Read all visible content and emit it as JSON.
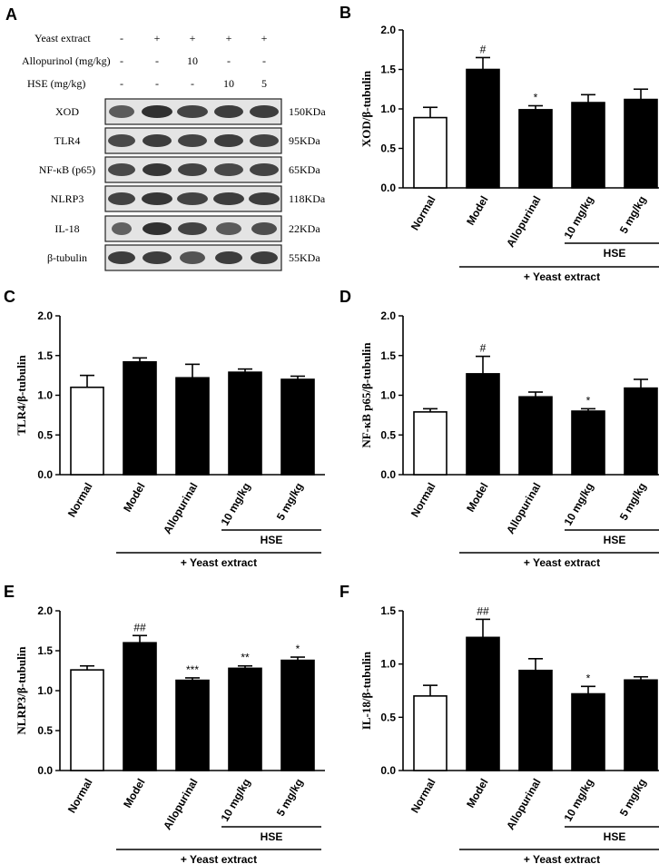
{
  "panel_a": {
    "letter": "A",
    "treatments": [
      {
        "label": "Yeast extract",
        "values": [
          "-",
          "+",
          "+",
          "+",
          "+"
        ]
      },
      {
        "label": "Allopurinol (mg/kg)",
        "values": [
          "-",
          "-",
          "10",
          "-",
          "-"
        ]
      },
      {
        "label": "HSE (mg/kg)",
        "values": [
          "-",
          "-",
          "-",
          "10",
          "5"
        ]
      }
    ],
    "blots": [
      {
        "protein": "XOD",
        "size": "150KDa"
      },
      {
        "protein": "TLR4",
        "size": "95KDa"
      },
      {
        "protein": "NF-κB (p65)",
        "size": "65KDa"
      },
      {
        "protein": "NLRP3",
        "size": "118KDa"
      },
      {
        "protein": "IL-18",
        "size": "22KDa"
      },
      {
        "protein": "β-tubulin",
        "size": "55KDa"
      }
    ]
  },
  "chart_data": [
    {
      "panel": "B",
      "type": "bar",
      "ylabel": "XOD/β-tubulin",
      "categories": [
        "Normal",
        "Model",
        "Allopurinal",
        "10 mg/kg",
        "5 mg/kg"
      ],
      "values": [
        0.89,
        1.5,
        0.99,
        1.08,
        1.12
      ],
      "errors": [
        0.13,
        0.15,
        0.05,
        0.1,
        0.13
      ],
      "sig": [
        "",
        "#",
        "*",
        "",
        ""
      ],
      "ylim": [
        0,
        2.0
      ],
      "yticks": [
        0.0,
        0.5,
        1.0,
        1.5,
        2.0
      ],
      "group_label": "HSE",
      "treatment_label": "+ Yeast extract"
    },
    {
      "panel": "C",
      "type": "bar",
      "ylabel": "TLR4/β-tubulin",
      "categories": [
        "Normal",
        "Model",
        "Allopurinal",
        "10 mg/kg",
        "5 mg/kg"
      ],
      "values": [
        1.1,
        1.42,
        1.22,
        1.29,
        1.2
      ],
      "errors": [
        0.15,
        0.05,
        0.17,
        0.04,
        0.04
      ],
      "sig": [
        "",
        "",
        "",
        "",
        ""
      ],
      "ylim": [
        0,
        2.0
      ],
      "yticks": [
        0.0,
        0.5,
        1.0,
        1.5,
        2.0
      ],
      "group_label": "HSE",
      "treatment_label": "+ Yeast extract"
    },
    {
      "panel": "D",
      "type": "bar",
      "ylabel": "NF-κB p65/β-tubulin",
      "categories": [
        "Normal",
        "Model",
        "Allopurinal",
        "10 mg/kg",
        "5 mg/kg"
      ],
      "values": [
        0.79,
        1.27,
        0.98,
        0.8,
        1.09
      ],
      "errors": [
        0.04,
        0.22,
        0.06,
        0.03,
        0.11
      ],
      "sig": [
        "",
        "#",
        "",
        "*",
        ""
      ],
      "ylim": [
        0,
        2.0
      ],
      "yticks": [
        0.0,
        0.5,
        1.0,
        1.5,
        2.0
      ],
      "group_label": "HSE",
      "treatment_label": "+ Yeast extract"
    },
    {
      "panel": "E",
      "type": "bar",
      "ylabel": "NLRP3/β-tubulin",
      "categories": [
        "Normal",
        "Model",
        "Allopurinal",
        "10 mg/kg",
        "5 mg/kg"
      ],
      "values": [
        1.26,
        1.6,
        1.13,
        1.28,
        1.38
      ],
      "errors": [
        0.05,
        0.09,
        0.03,
        0.03,
        0.04
      ],
      "sig": [
        "",
        "##",
        "***",
        "**",
        "*"
      ],
      "ylim": [
        0,
        2.0
      ],
      "yticks": [
        0.0,
        0.5,
        1.0,
        1.5,
        2.0
      ],
      "group_label": "HSE",
      "treatment_label": "+ Yeast extract"
    },
    {
      "panel": "F",
      "type": "bar",
      "ylabel": "IL-18/β-tubulin",
      "categories": [
        "Normal",
        "Model",
        "Allopurinal",
        "10 mg/kg",
        "5 mg/kg"
      ],
      "values": [
        0.7,
        1.25,
        0.94,
        0.72,
        0.85
      ],
      "errors": [
        0.1,
        0.17,
        0.11,
        0.07,
        0.03
      ],
      "sig": [
        "",
        "##",
        "",
        "*",
        ""
      ],
      "ylim": [
        0,
        1.5
      ],
      "yticks": [
        0.0,
        0.5,
        1.0,
        1.5
      ],
      "group_label": "HSE",
      "treatment_label": "+ Yeast extract"
    }
  ]
}
